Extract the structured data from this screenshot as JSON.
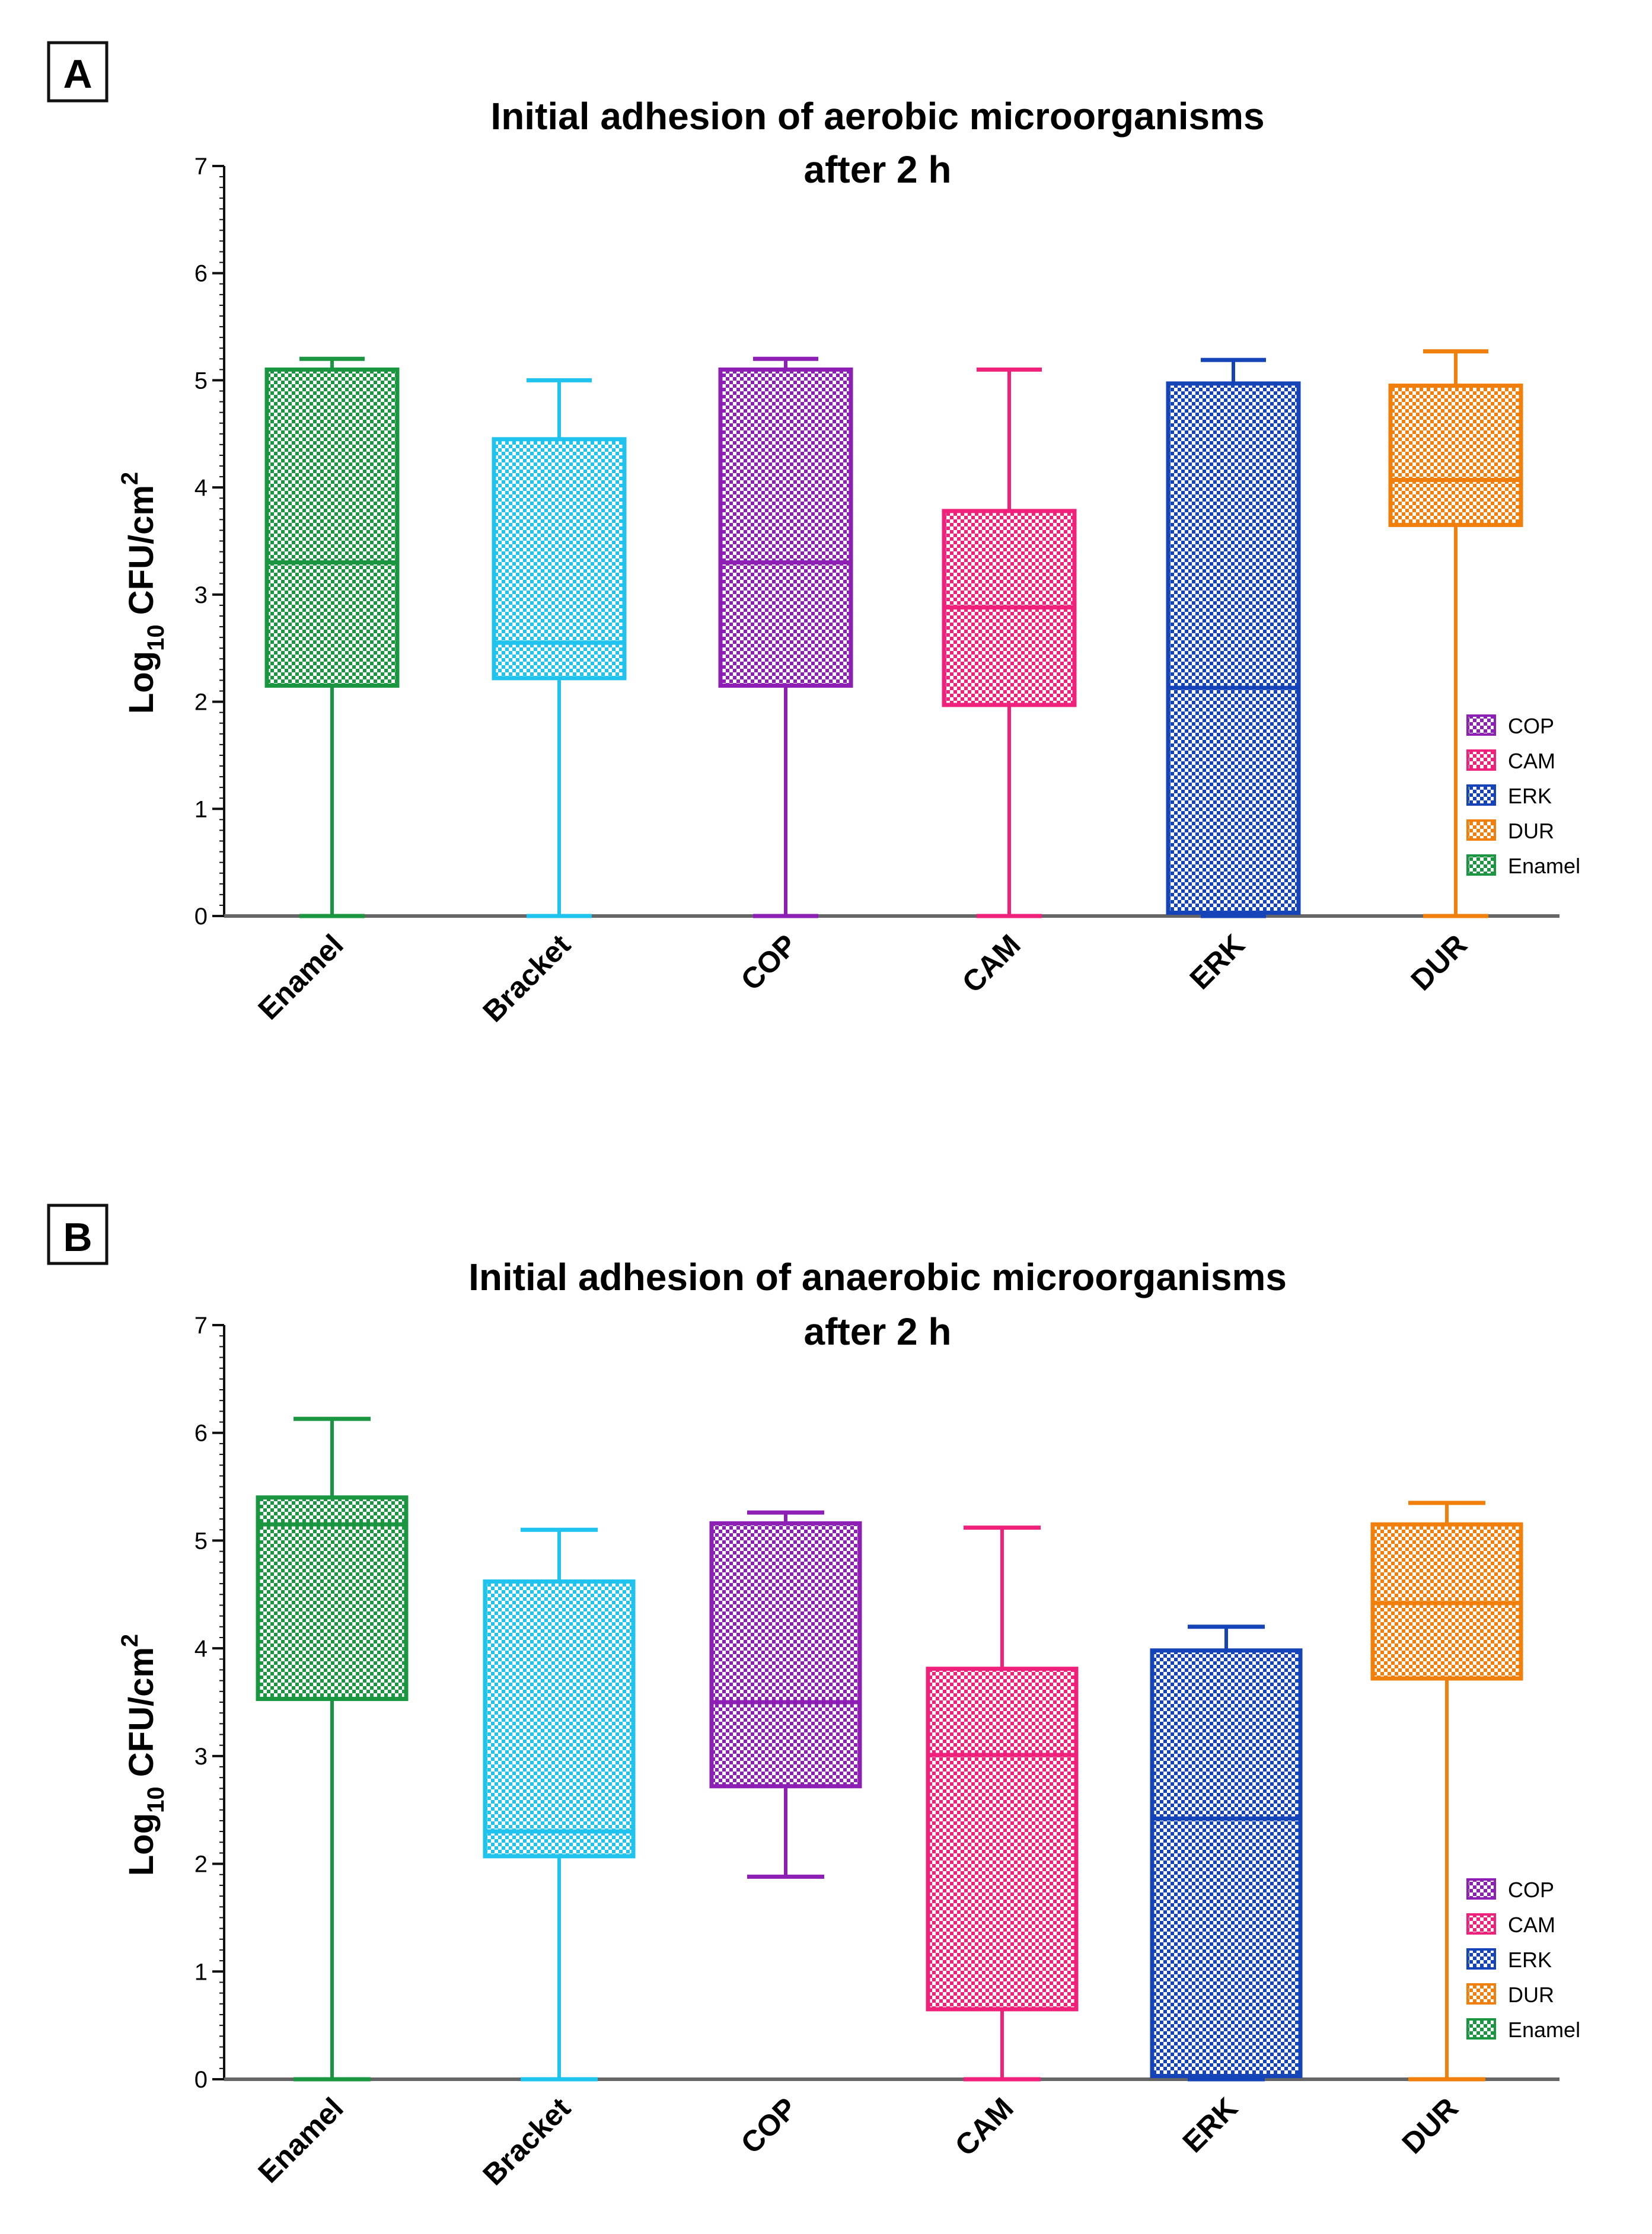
{
  "colors": {
    "Enamel": "#1a9641",
    "Bracket": "#1fc3ee",
    "COP": "#8e1fb4",
    "CAM": "#f0217a",
    "ERK": "#1544b8",
    "DUR": "#f07f0c"
  },
  "chart_data": [
    {
      "panel_letter": "A",
      "type": "box",
      "title": "Initial adhesion of aerobic microorganisms",
      "title_line2": "after 2 h",
      "ylabel": {
        "base": "Log",
        "sub": "10",
        "unit": " CFU/cm",
        "sup": "2"
      },
      "ylim": [
        0,
        7
      ],
      "yticks": [
        "0",
        "1",
        "2",
        "3",
        "4",
        "5",
        "6",
        "7"
      ],
      "categories": [
        "Enamel",
        "Bracket",
        "COP",
        "CAM",
        "ERK",
        "DUR"
      ],
      "boxes": [
        {
          "name": "Enamel",
          "min": 0,
          "q1": 2.15,
          "median": 3.3,
          "q3": 5.1,
          "max": 5.2
        },
        {
          "name": "Bracket",
          "min": 0,
          "q1": 2.22,
          "median": 2.55,
          "q3": 4.45,
          "max": 5.0
        },
        {
          "name": "COP",
          "min": 0,
          "q1": 2.15,
          "median": 3.3,
          "q3": 5.1,
          "max": 5.2
        },
        {
          "name": "CAM",
          "min": 0,
          "q1": 1.97,
          "median": 2.88,
          "q3": 3.78,
          "max": 5.1
        },
        {
          "name": "ERK",
          "min": 0,
          "q1": 0.03,
          "median": 2.13,
          "q3": 4.97,
          "max": 5.19
        },
        {
          "name": "DUR",
          "min": 0,
          "q1": 3.65,
          "median": 4.07,
          "q3": 4.95,
          "max": 5.27
        }
      ],
      "legend": [
        "COP",
        "CAM",
        "ERK",
        "DUR",
        "Enamel"
      ]
    },
    {
      "panel_letter": "B",
      "type": "box",
      "title": "Initial adhesion of anaerobic microorganisms",
      "title_line2": "after 2 h",
      "ylabel": {
        "base": "Log",
        "sub": "10",
        "unit": " CFU/cm",
        "sup": "2"
      },
      "ylim": [
        0,
        7
      ],
      "yticks": [
        "0",
        "1",
        "2",
        "3",
        "4",
        "5",
        "6",
        "7"
      ],
      "categories": [
        "Enamel",
        "Bracket",
        "COP",
        "CAM",
        "ERK",
        "DUR"
      ],
      "boxes": [
        {
          "name": "Enamel",
          "min": 0,
          "q1": 3.53,
          "median": 5.15,
          "q3": 5.4,
          "max": 6.13
        },
        {
          "name": "Bracket",
          "min": 0,
          "q1": 2.07,
          "median": 2.3,
          "q3": 4.62,
          "max": 5.1
        },
        {
          "name": "COP",
          "min": 1.88,
          "q1": 2.72,
          "median": 3.5,
          "q3": 5.16,
          "max": 5.26
        },
        {
          "name": "CAM",
          "min": 0,
          "q1": 0.65,
          "median": 3.01,
          "q3": 3.81,
          "max": 5.12
        },
        {
          "name": "ERK",
          "min": 0,
          "q1": 0.03,
          "median": 2.42,
          "q3": 3.98,
          "max": 4.2
        },
        {
          "name": "DUR",
          "min": 0,
          "q1": 3.72,
          "median": 4.42,
          "q3": 5.15,
          "max": 5.35
        }
      ],
      "legend": [
        "COP",
        "CAM",
        "ERK",
        "DUR",
        "Enamel"
      ]
    }
  ]
}
